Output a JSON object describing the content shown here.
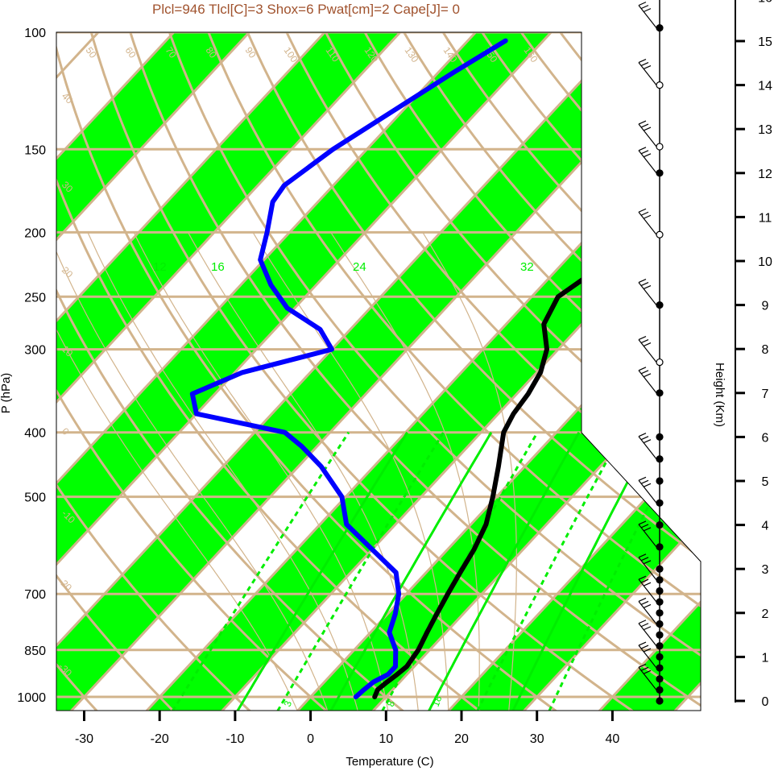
{
  "title": "Plcl=946 Tlcl[C]=3 Shox=6 Pwat[cm]=2 Cape[J]= 0",
  "colors": {
    "title": "#a0522d",
    "isotherm_band": "#00ff00",
    "background_lines": "#d2b48c",
    "mixing_ratio": "#00ee00",
    "temperature": "#000000",
    "dewpoint": "#0000ff"
  },
  "chart_data": {
    "type": "line",
    "title": "Plcl=946 Tlcl[C]=3 Shox=6 Pwat[cm]=2 Cape[J]= 0",
    "xlabel": "Temperature (C)",
    "ylabel": "P (hPa)",
    "y2label": "Height (Km)",
    "xlim": [
      -33,
      52
    ],
    "ylim_pressure": [
      1050,
      100
    ],
    "y_scale": "log",
    "x_ticks": [
      -30,
      -20,
      -10,
      0,
      10,
      20,
      30,
      40
    ],
    "x_tick_labels": [
      "-30",
      "-20",
      "-10",
      "0",
      "10",
      "20",
      "30",
      "40"
    ],
    "pressure_ticks": [
      100,
      150,
      200,
      250,
      300,
      400,
      500,
      700,
      850,
      1000
    ],
    "pressure_tick_labels": [
      "100",
      "150",
      "200",
      "250",
      "300",
      "400",
      "500",
      "700",
      "850",
      "1000"
    ],
    "height_ticks": [
      0,
      1,
      2,
      3,
      4,
      5,
      6,
      7,
      8,
      9,
      10,
      11,
      12,
      13,
      14,
      15,
      16
    ],
    "height_tick_labels": [
      "0",
      "1",
      "2",
      "3",
      "4",
      "5",
      "6",
      "7",
      "8",
      "9",
      "10",
      "11",
      "12",
      "13",
      "14",
      "15",
      "16"
    ],
    "isotherm_band_labels": [
      "-30",
      "-20",
      "-10",
      "0",
      "10",
      "20",
      "30"
    ],
    "skewed_isotherm_labels_left": [
      "40",
      "30",
      "20",
      "10",
      "0",
      "-10",
      "-20",
      "-30"
    ],
    "dry_adiabat_labels": [
      "50",
      "60",
      "70",
      "80",
      "90",
      "100",
      "110",
      "120",
      "130",
      "140",
      "150",
      "160"
    ],
    "moist_adiabat_labels": [
      "12",
      "16",
      "24",
      "32"
    ],
    "mixing_ratio_labels": [
      "3",
      "8",
      "18"
    ],
    "series": [
      {
        "name": "Temperature",
        "points": [
          [
            1000,
            8.5
          ],
          [
            975,
            8.0
          ],
          [
            950,
            8.3
          ],
          [
            925,
            8.7
          ],
          [
            900,
            9.0
          ],
          [
            850,
            8.5
          ],
          [
            800,
            7.5
          ],
          [
            750,
            6.5
          ],
          [
            700,
            5.5
          ],
          [
            650,
            4.5
          ],
          [
            600,
            3.5
          ],
          [
            550,
            2.0
          ],
          [
            500,
            -0.5
          ],
          [
            450,
            -3.5
          ],
          [
            400,
            -7.0
          ],
          [
            375,
            -8.0
          ],
          [
            350,
            -8.5
          ],
          [
            325,
            -9.5
          ],
          [
            300,
            -11.5
          ],
          [
            275,
            -15.0
          ],
          [
            250,
            -16.5
          ],
          [
            225,
            -14.5
          ],
          [
            200,
            -13.0
          ],
          [
            175,
            -15.5
          ],
          [
            150,
            -19.0
          ],
          [
            125,
            -23.0
          ],
          [
            110,
            -27.0
          ],
          [
            103,
            -27.5
          ]
        ]
      },
      {
        "name": "Dewpoint",
        "points": [
          [
            1000,
            6.0
          ],
          [
            975,
            6.2
          ],
          [
            950,
            6.5
          ],
          [
            925,
            7.5
          ],
          [
            900,
            7.5
          ],
          [
            850,
            5.5
          ],
          [
            800,
            2.5
          ],
          [
            750,
            1.0
          ],
          [
            700,
            -1.0
          ],
          [
            650,
            -4.0
          ],
          [
            600,
            -10.0
          ],
          [
            550,
            -16.5
          ],
          [
            500,
            -20.5
          ],
          [
            450,
            -27.0
          ],
          [
            420,
            -32.0
          ],
          [
            400,
            -36.0
          ],
          [
            375,
            -50.0
          ],
          [
            350,
            -53.0
          ],
          [
            325,
            -49.0
          ],
          [
            300,
            -40.0
          ],
          [
            280,
            -44.0
          ],
          [
            260,
            -51.0
          ],
          [
            240,
            -56.0
          ],
          [
            220,
            -60.5
          ],
          [
            200,
            -63.0
          ],
          [
            180,
            -66.0
          ],
          [
            170,
            -66.5
          ],
          [
            150,
            -64.5
          ],
          [
            130,
            -61.0
          ],
          [
            115,
            -58.0
          ],
          [
            103,
            -55.0
          ]
        ]
      }
    ],
    "wind_profile_heights_km": [
      0,
      0.25,
      0.5,
      0.75,
      1,
      1.25,
      1.5,
      1.75,
      2,
      2.25,
      2.5,
      2.75,
      3,
      3.5,
      4,
      4.5,
      5,
      5.5,
      6,
      7,
      7.7,
      9,
      10.6,
      12,
      12.6,
      14,
      15.3,
      16.2
    ]
  }
}
